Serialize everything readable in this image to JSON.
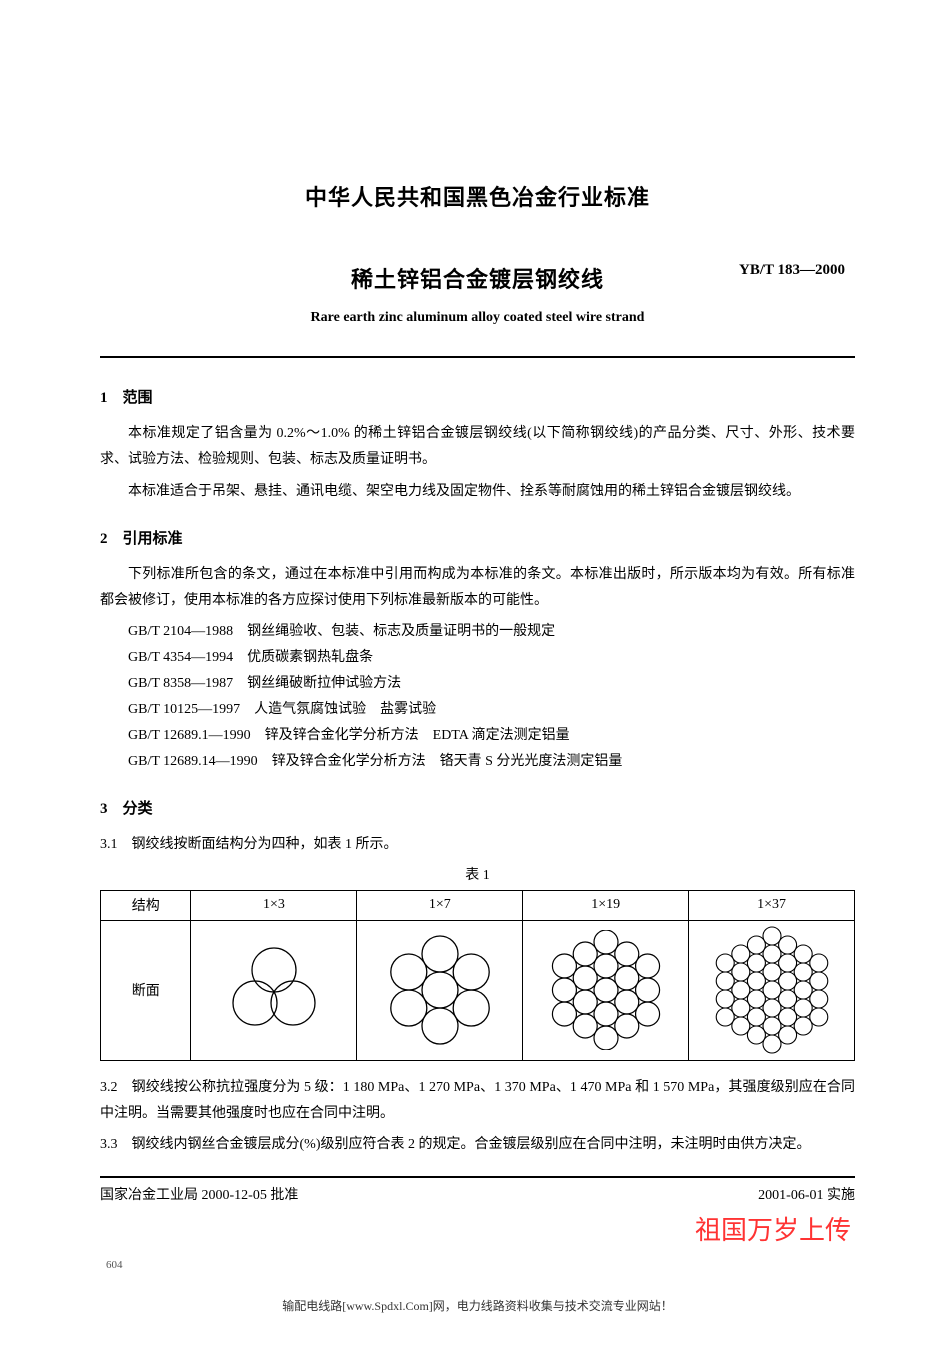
{
  "header": {
    "main_title": "中华人民共和国黑色冶金行业标准",
    "subtitle_cn": "稀土锌铝合金镀层钢绞线",
    "standard_code": "YB/T 183—2000",
    "subtitle_en": "Rare earth zinc aluminum alloy coated steel wire strand"
  },
  "sections": {
    "s1": {
      "head": "1　范围",
      "p1": "本标准规定了铝含量为 0.2%～1.0% 的稀土锌铝合金镀层钢绞线(以下简称钢绞线)的产品分类、尺寸、外形、技术要求、试验方法、检验规则、包装、标志及质量证明书。",
      "p2": "本标准适合于吊架、悬挂、通讯电缆、架空电力线及固定物件、拴系等耐腐蚀用的稀土锌铝合金镀层钢绞线。"
    },
    "s2": {
      "head": "2　引用标准",
      "p1": "下列标准所包含的条文，通过在本标准中引用而构成为本标准的条文。本标准出版时，所示版本均为有效。所有标准都会被修订，使用本标准的各方应探讨使用下列标准最新版本的可能性。",
      "refs": [
        "GB/T 2104—1988　钢丝绳验收、包装、标志及质量证明书的一般规定",
        "GB/T 4354—1994　优质碳素钢热轧盘条",
        "GB/T 8358—1987　钢丝绳破断拉伸试验方法",
        "GB/T 10125—1997　人造气氛腐蚀试验　盐雾试验",
        "GB/T 12689.1—1990　锌及锌合金化学分析方法　EDTA 滴定法测定铝量",
        "GB/T 12689.14—1990　锌及锌合金化学分析方法　铬天青 S 分光光度法测定铝量"
      ]
    },
    "s3": {
      "head": "3　分类",
      "p31": "3.1　钢绞线按断面结构分为四种，如表 1 所示。",
      "table_caption": "表 1",
      "p32": "3.2　钢绞线按公称抗拉强度分为 5 级：1 180 MPa、1 270 MPa、1 370 MPa、1 470 MPa 和 1 570 MPa，其强度级别应在合同中注明。当需要其他强度时也应在合同中注明。",
      "p33": "3.3　钢绞线内钢丝合金镀层成分(%)级别应符合表 2 的规定。合金镀层级别应在合同中注明，未注明时由供方决定。"
    }
  },
  "table1": {
    "col_head": "结构",
    "row_head": "断面",
    "cols": [
      "1×3",
      "1×7",
      "1×19",
      "1×37"
    ],
    "diagrams": {
      "stroke": "#000000",
      "fill": "none",
      "stroke_width": 1.3,
      "r_1x3": 22,
      "r_1x7": 18,
      "r_1x19": 12,
      "r_1x37": 9
    }
  },
  "footer": {
    "approve": "国家冶金工业局 2000-12-05 批准",
    "effective": "2001-06-01 实施",
    "watermark": "祖国万岁上传",
    "page_num": "604",
    "bottom_note": "输配电线路[www.Spdxl.Com]网，电力线路资料收集与技术交流专业网站！"
  }
}
